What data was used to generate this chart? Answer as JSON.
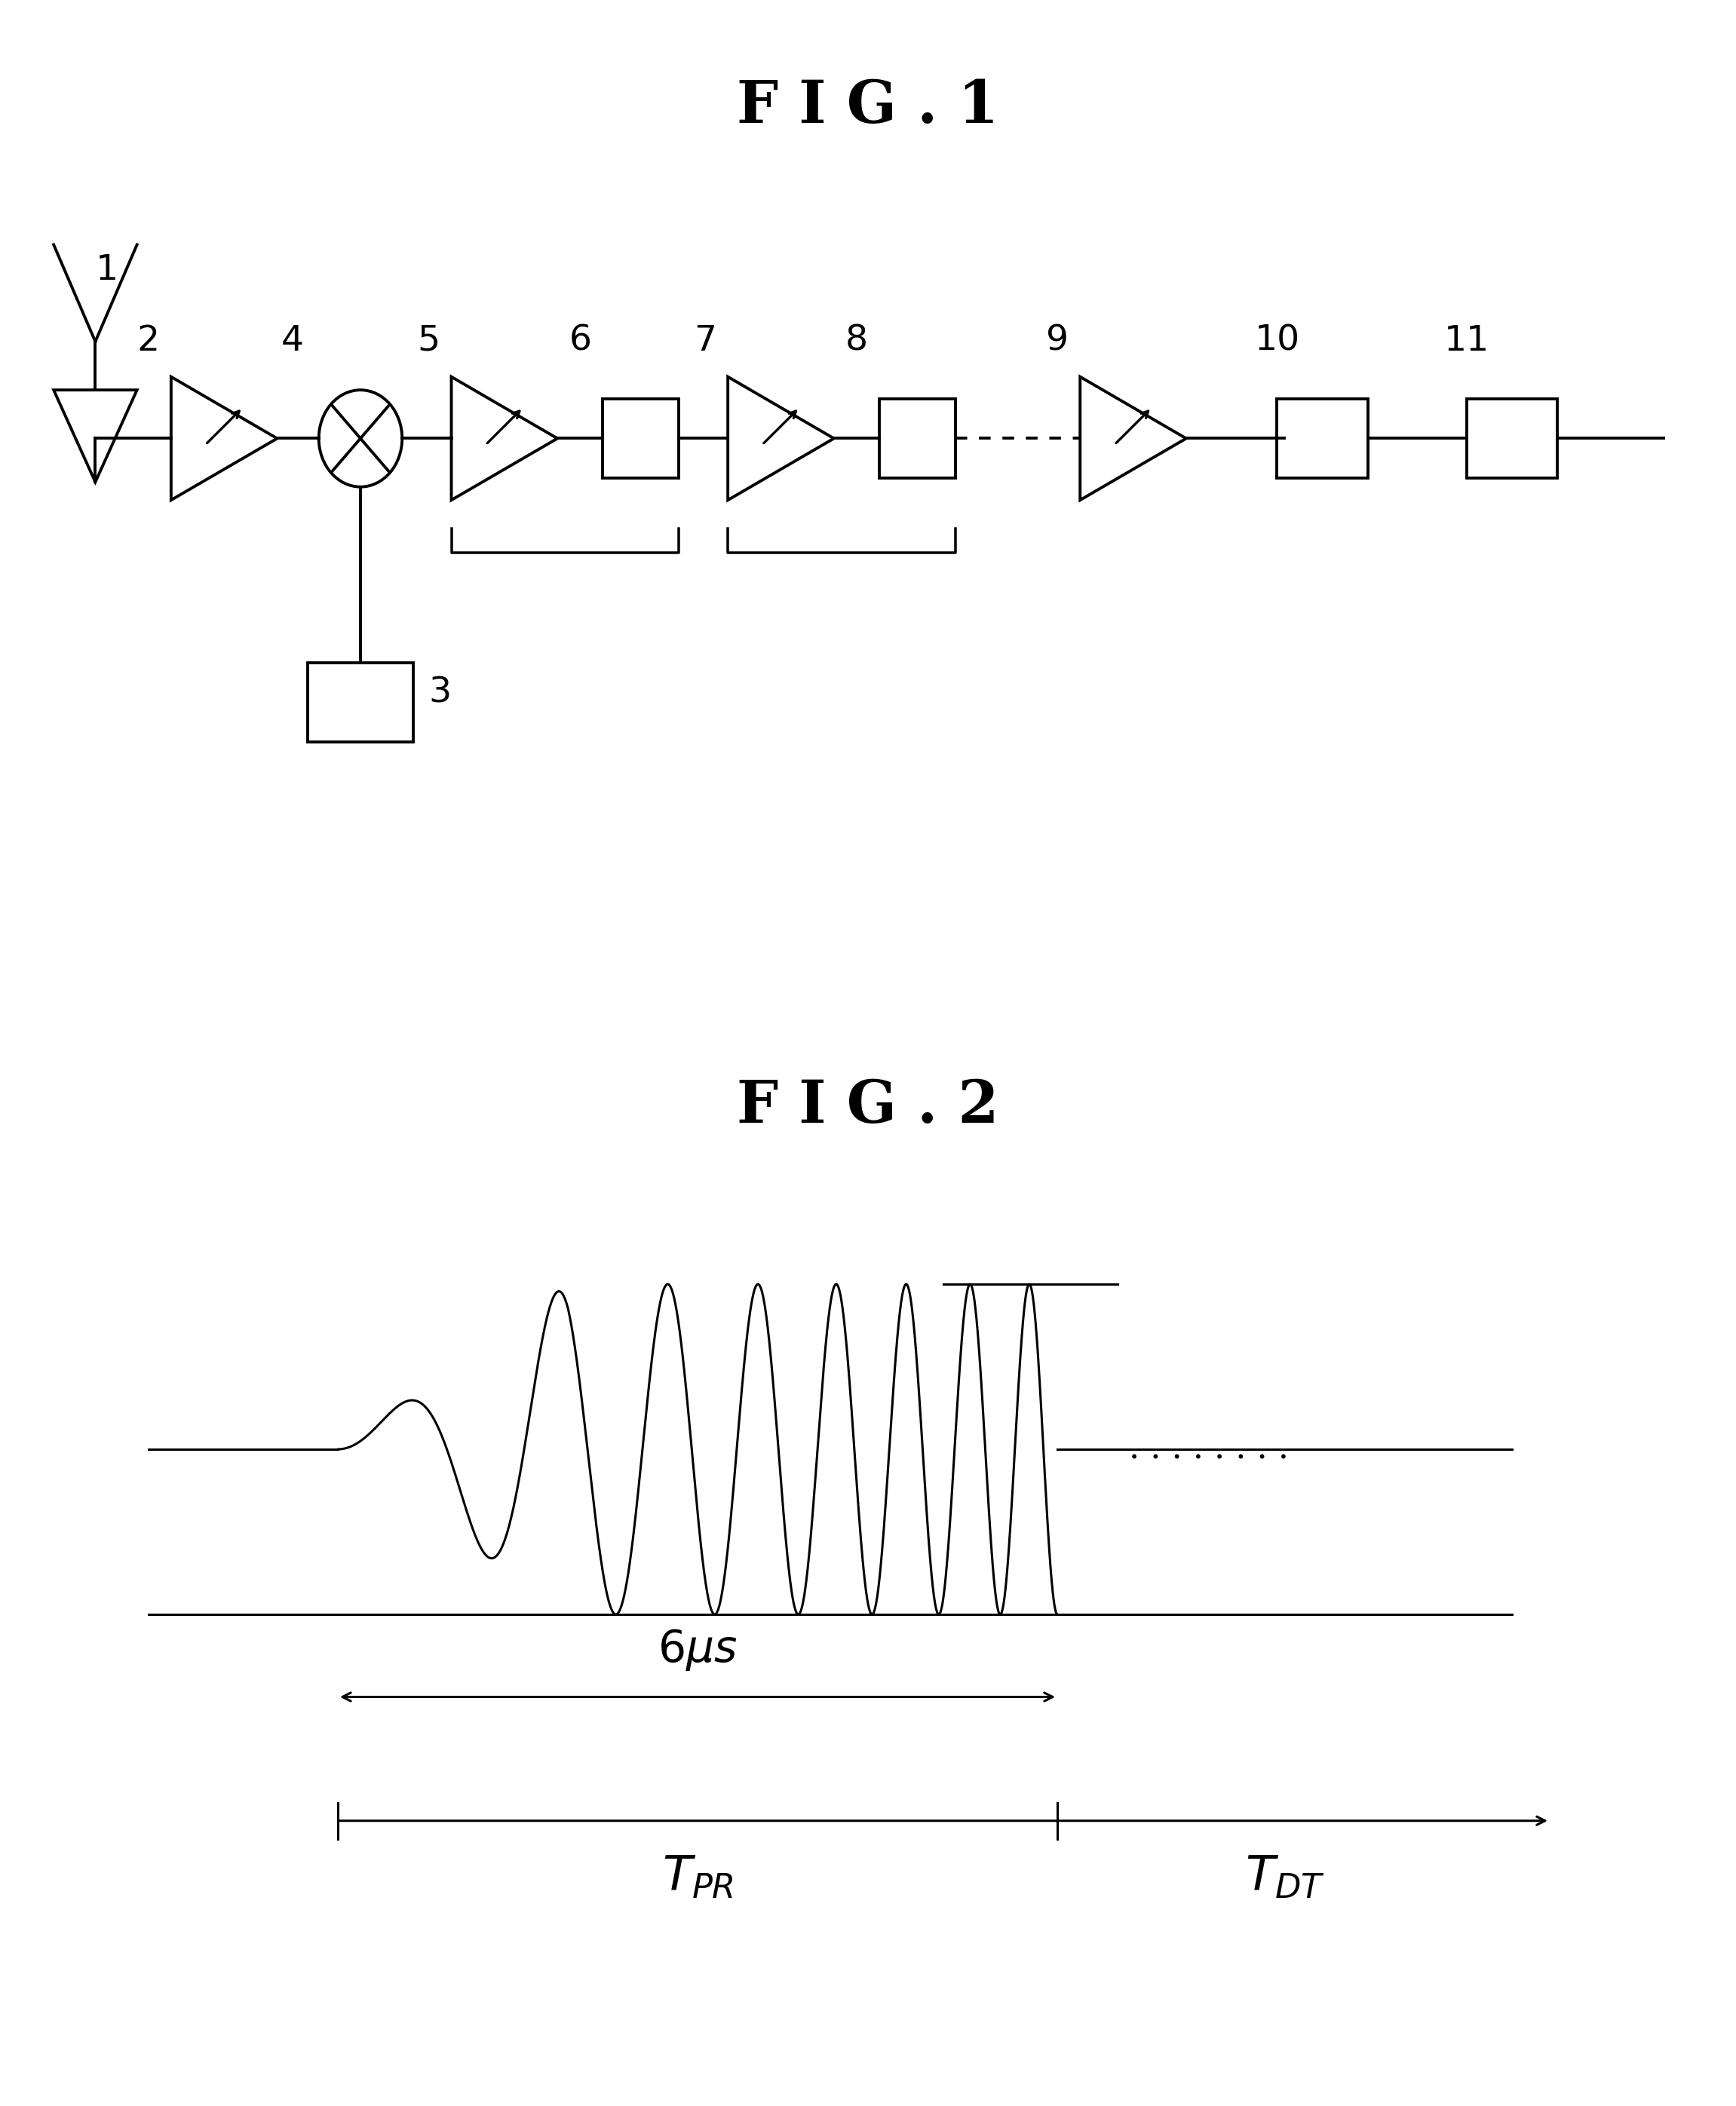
{
  "fig1_title": "F I G . 1",
  "fig2_title": "F I G . 2",
  "bg_color": "#ffffff",
  "line_color": "#000000",
  "title_fontsize": 56,
  "label_fontsize": 34,
  "annotation_fontsize": 34,
  "lw": 2.8
}
